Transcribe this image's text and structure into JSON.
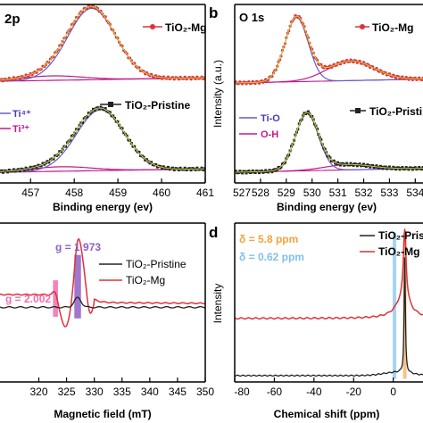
{
  "chart_data": [
    {
      "panel": "a",
      "type": "line",
      "title": "2p",
      "panel_label": "",
      "xlabel": "Binding energy (ev)",
      "ylabel": "",
      "xlim": [
        456.3,
        461
      ],
      "ylim": [
        0,
        1
      ],
      "xticks": [
        457,
        458,
        459,
        460,
        461
      ],
      "series": [
        {
          "name": "TiO₂-Mg",
          "role": "data",
          "color": "#e0303a",
          "marker": "o",
          "center": 458.4,
          "sigma": 0.55,
          "amp": 0.4,
          "base": 0.57,
          "label_y": 0.92
        },
        {
          "name": "TiO₂-Pristine",
          "role": "data",
          "color": "#222222",
          "marker": "s",
          "center": 458.6,
          "sigma": 0.55,
          "amp": 0.34,
          "base": 0.06,
          "label_y": 0.43
        },
        {
          "name": "Ti⁴⁺",
          "role": "fit",
          "color": "#6a5acd"
        },
        {
          "name": "Ti³⁺",
          "role": "fit",
          "color": "#c2188c"
        }
      ],
      "legend_entries": [
        "Ti⁴⁺",
        "Ti³⁺"
      ]
    },
    {
      "panel": "b",
      "type": "line",
      "title": "O 1s",
      "panel_label": "b",
      "xlabel": "Binding energy (ev)",
      "ylabel": "Intensity (a.u.)",
      "xlim": [
        527,
        534.3
      ],
      "ylim": [
        0,
        1
      ],
      "xticks": [
        527,
        528,
        529,
        530,
        531,
        532,
        533,
        534
      ],
      "series": [
        {
          "name": "TiO₂-Mg",
          "role": "data",
          "color": "#e0303a",
          "marker": "o",
          "center": 529.4,
          "sigma": 0.45,
          "amp": 0.36,
          "base": 0.56,
          "shoulder_center": 531.5,
          "shoulder_amp": 0.11,
          "label_y": 0.92
        },
        {
          "name": "TiO₂-Pristine",
          "role": "data",
          "color": "#222222",
          "marker": "s",
          "center": 529.8,
          "sigma": 0.45,
          "amp": 0.32,
          "base": 0.06,
          "shoulder_center": 531.4,
          "shoulder_amp": 0.03,
          "label_y": 0.44
        },
        {
          "name": "Ti-O",
          "role": "fit",
          "color": "#6a5acd"
        },
        {
          "name": "O-H",
          "role": "fit",
          "color": "#c2188c"
        }
      ],
      "legend_entries": [
        "Ti-O",
        "O-H"
      ]
    },
    {
      "panel": "c",
      "type": "line",
      "title": "",
      "panel_label": "",
      "xlabel": "Magnetic field (mT)",
      "ylabel": "",
      "xlim": [
        313,
        350
      ],
      "ylim": [
        0,
        1
      ],
      "xticks": [
        320,
        325,
        330,
        335,
        340,
        345,
        350
      ],
      "series": [
        {
          "name": "TiO₂-Pristine",
          "color": "#222222"
        },
        {
          "name": "TiO₂-Mg",
          "color": "#e0303a"
        }
      ],
      "annotations": [
        {
          "text": "g = 2.002",
          "x": 323.0,
          "band_color": "#f06fb0"
        },
        {
          "text": "g = 1.973",
          "x": 327.0,
          "band_color": "#8e5fc4"
        }
      ]
    },
    {
      "panel": "d",
      "type": "line",
      "title": "",
      "panel_label": "d",
      "xlabel": "Chemical shift (ppm)",
      "ylabel": "Intensity",
      "xlim": [
        -80,
        15
      ],
      "ylim": [
        0,
        1
      ],
      "xticks": [
        -80,
        -60,
        -40,
        -20,
        0,
        20
      ],
      "series": [
        {
          "name": "TiO₂-Pristine",
          "color": "#222222"
        },
        {
          "name": "TiO₂-Mg",
          "color": "#e0303a"
        }
      ],
      "annotations": [
        {
          "text": "δ = 5.8 ppm",
          "x": 5.8,
          "band_color": "#f2b25c"
        },
        {
          "text": "δ = 0.62 ppm",
          "x": 0.62,
          "band_color": "#8fc9ee"
        }
      ]
    }
  ]
}
